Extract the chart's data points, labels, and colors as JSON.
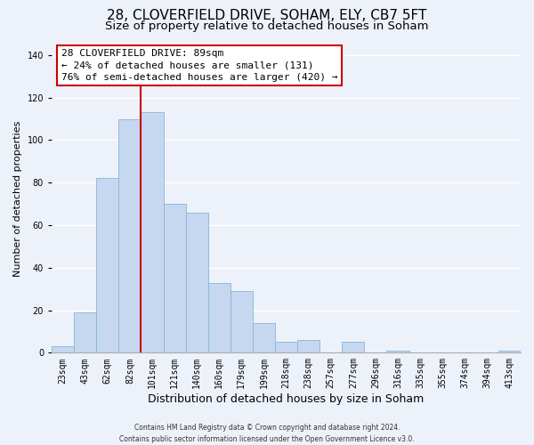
{
  "title": "28, CLOVERFIELD DRIVE, SOHAM, ELY, CB7 5FT",
  "subtitle": "Size of property relative to detached houses in Soham",
  "xlabel": "Distribution of detached houses by size in Soham",
  "ylabel": "Number of detached properties",
  "categories": [
    "23sqm",
    "43sqm",
    "62sqm",
    "82sqm",
    "101sqm",
    "121sqm",
    "140sqm",
    "160sqm",
    "179sqm",
    "199sqm",
    "218sqm",
    "238sqm",
    "257sqm",
    "277sqm",
    "296sqm",
    "316sqm",
    "335sqm",
    "355sqm",
    "374sqm",
    "394sqm",
    "413sqm"
  ],
  "values": [
    3,
    19,
    82,
    110,
    113,
    70,
    66,
    33,
    29,
    14,
    5,
    6,
    0,
    5,
    0,
    1,
    0,
    0,
    0,
    0,
    1
  ],
  "bar_color": "#c5d8f0",
  "bar_edge_color": "#8ab4d8",
  "vline_x_index": 3.5,
  "vline_color": "#cc0000",
  "ylim": [
    0,
    145
  ],
  "yticks": [
    0,
    20,
    40,
    60,
    80,
    100,
    120,
    140
  ],
  "annotation_title": "28 CLOVERFIELD DRIVE: 89sqm",
  "annotation_line1": "← 24% of detached houses are smaller (131)",
  "annotation_line2": "76% of semi-detached houses are larger (420) →",
  "annotation_box_color": "#ffffff",
  "annotation_box_edge": "#cc0000",
  "footer_line1": "Contains HM Land Registry data © Crown copyright and database right 2024.",
  "footer_line2": "Contains public sector information licensed under the Open Government Licence v3.0.",
  "background_color": "#edf2fa",
  "grid_color": "#ffffff",
  "title_fontsize": 11,
  "subtitle_fontsize": 9.5,
  "xlabel_fontsize": 9,
  "ylabel_fontsize": 8,
  "tick_fontsize": 7,
  "footer_fontsize": 5.5,
  "annotation_fontsize": 8
}
